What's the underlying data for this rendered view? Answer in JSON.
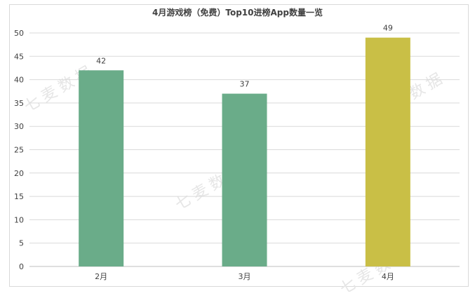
{
  "chart_data": {
    "type": "bar",
    "title": "4月游戏榜（免费）Top10进榜App数量一览",
    "categories": [
      "2月",
      "3月",
      "4月"
    ],
    "values": [
      42,
      37,
      49
    ],
    "colors": [
      "#6aac89",
      "#6aac89",
      "#c9bf46"
    ],
    "ylim": [
      0,
      50
    ],
    "yticks": [
      0,
      5,
      10,
      15,
      20,
      25,
      30,
      35,
      40,
      45,
      50
    ],
    "grid": true,
    "xlabel": "",
    "ylabel": ""
  },
  "watermark": "七麦数据"
}
